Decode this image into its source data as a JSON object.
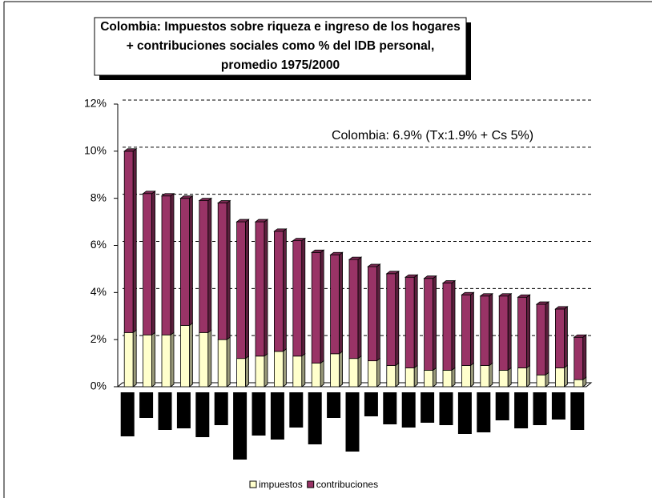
{
  "chart_data": {
    "type": "stacked_bar",
    "title": "Colombia: Impuestos sobre riqueza e ingreso de los hogares + contribuciones sociales como % del IDB personal, promedio 1975/2000",
    "annotation": "Colombia: 6.9% (Tx:1.9% + Cs 5%)",
    "categories": [
      null,
      null,
      null,
      null,
      null,
      null,
      null,
      null,
      null,
      null,
      null,
      null,
      null,
      null,
      null,
      null,
      null,
      null,
      null,
      null,
      null,
      null,
      null,
      null,
      null
    ],
    "series": [
      {
        "name": "impuestos",
        "color": "#ffffcc",
        "values": [
          2.3,
          2.2,
          2.2,
          2.6,
          2.3,
          2.0,
          1.2,
          1.3,
          1.5,
          1.3,
          1.0,
          1.4,
          1.2,
          1.1,
          0.9,
          0.8,
          0.7,
          0.7,
          0.9,
          0.9,
          0.7,
          0.8,
          0.5,
          0.8,
          0.3
        ]
      },
      {
        "name": "contribuciones",
        "color": "#993366",
        "values": [
          7.7,
          6.0,
          5.9,
          5.4,
          5.6,
          5.8,
          5.8,
          5.7,
          5.1,
          4.9,
          4.7,
          4.2,
          4.2,
          4.0,
          3.9,
          3.85,
          3.9,
          3.7,
          3.0,
          2.95,
          3.15,
          3.0,
          3.0,
          2.5,
          1.8
        ]
      }
    ],
    "ylim": [
      0,
      12
    ],
    "yticks": [
      {
        "value": 0,
        "label": "0%"
      },
      {
        "value": 2,
        "label": "2%"
      },
      {
        "value": 4,
        "label": "4%"
      },
      {
        "value": 6,
        "label": "6%"
      },
      {
        "value": 8,
        "label": "8%"
      },
      {
        "value": 10,
        "label": "10%"
      },
      {
        "value": 12,
        "label": "12%"
      }
    ],
    "grid": true,
    "legend": "bottom"
  }
}
